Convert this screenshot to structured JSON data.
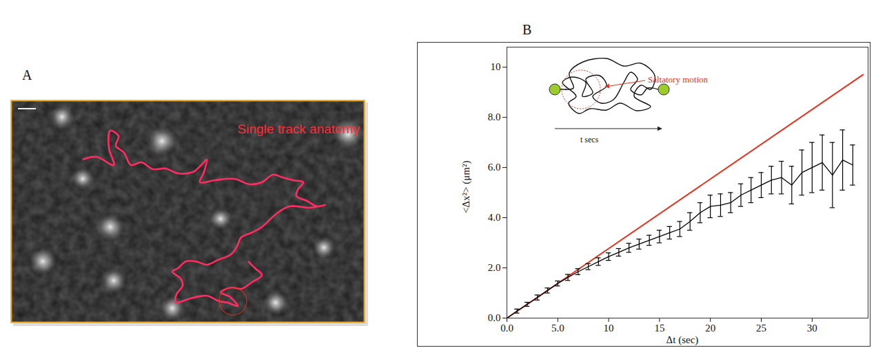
{
  "panel_a": {
    "label": "A",
    "title": "Single track anatomy"
  },
  "chart_data": {
    "type": "line",
    "panel_label": "B",
    "x_label": "Δt (sec)",
    "y_label": "<Δx²> (μm²)",
    "annotations": [
      "Saltatory motion",
      "t secs"
    ],
    "xlim": [
      0,
      35.5
    ],
    "ylim": [
      0,
      10.8
    ],
    "xticks": [
      {
        "value": 0,
        "label": "0.0"
      },
      {
        "value": 5,
        "label": "5.0"
      },
      10,
      15,
      20,
      25,
      30
    ],
    "yticks": [
      {
        "value": 0,
        "label": "0.0"
      },
      {
        "value": 2,
        "label": "2.0"
      },
      {
        "value": 4,
        "label": "4.0"
      },
      {
        "value": 6,
        "label": "6.0"
      },
      {
        "value": 8,
        "label": "8.0"
      },
      10
    ],
    "grid": false,
    "series": [
      {
        "color": "#e8321e",
        "x": [
          0,
          35
        ],
        "values": [
          0,
          9.7
        ]
      },
      {
        "color": "#000000",
        "x": [
          0,
          1,
          2,
          3,
          4,
          5,
          6,
          7,
          8,
          9,
          10,
          11,
          12,
          13,
          14,
          15,
          16,
          17,
          18,
          19,
          20,
          21,
          22,
          23,
          24,
          25,
          26,
          27,
          28,
          29,
          30,
          31,
          32,
          33,
          34
        ],
        "values": [
          0,
          0.28,
          0.55,
          0.82,
          1.1,
          1.38,
          1.62,
          1.85,
          2.05,
          2.25,
          2.45,
          2.62,
          2.8,
          2.95,
          3.1,
          3.25,
          3.4,
          3.55,
          3.85,
          4.2,
          4.45,
          4.5,
          4.6,
          4.9,
          5.1,
          5.3,
          5.5,
          5.6,
          5.3,
          5.8,
          6.0,
          6.2,
          5.7,
          6.3,
          6.1
        ],
        "errors": [
          0,
          0.08,
          0.08,
          0.1,
          0.1,
          0.1,
          0.12,
          0.12,
          0.12,
          0.15,
          0.15,
          0.15,
          0.18,
          0.2,
          0.2,
          0.25,
          0.25,
          0.3,
          0.35,
          0.4,
          0.45,
          0.45,
          0.4,
          0.45,
          0.5,
          0.5,
          0.55,
          0.65,
          0.75,
          0.9,
          1.0,
          1.1,
          1.3,
          1.2,
          0.8
        ]
      }
    ]
  }
}
